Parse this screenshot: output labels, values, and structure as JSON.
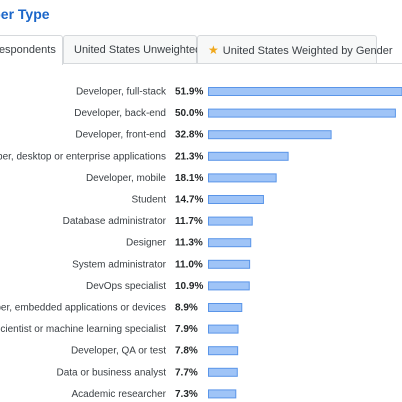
{
  "page": {
    "title": "eloper Type"
  },
  "tabs": [
    {
      "label": "Respondents",
      "active": true,
      "icon": ""
    },
    {
      "label": "United States Unweighted",
      "active": false,
      "icon": ""
    },
    {
      "label": "United States Weighted by Gender",
      "active": false,
      "icon": "star-icon"
    }
  ],
  "colors": {
    "title": "#1b66c9",
    "bar_fill": "#9fc4f7",
    "bar_stroke": "#5a95e8",
    "star": "#f0a81c"
  },
  "chart_data": {
    "type": "bar",
    "orientation": "horizontal",
    "xlim": [
      0,
      51.9
    ],
    "categories": [
      "Developer, full-stack",
      "Developer, back-end",
      "Developer, front-end",
      "eloper, desktop or enterprise applications",
      "Developer, mobile",
      "Student",
      "Database administrator",
      "Designer",
      "System administrator",
      "DevOps specialist",
      "eloper, embedded applications or devices",
      "ata scientist or machine learning specialist",
      "Developer, QA or test",
      "Data or business analyst",
      "Academic researcher"
    ],
    "values": [
      51.9,
      50.0,
      32.8,
      21.3,
      18.1,
      14.7,
      11.7,
      11.3,
      11.0,
      10.9,
      8.9,
      7.9,
      7.8,
      7.7,
      7.3
    ],
    "value_labels": [
      "51.9%",
      "50.0%",
      "32.8%",
      "21.3%",
      "18.1%",
      "14.7%",
      "11.7%",
      "11.3%",
      "11.0%",
      "10.9%",
      "8.9%",
      "7.9%",
      "7.8%",
      "7.7%",
      "7.3%"
    ]
  }
}
